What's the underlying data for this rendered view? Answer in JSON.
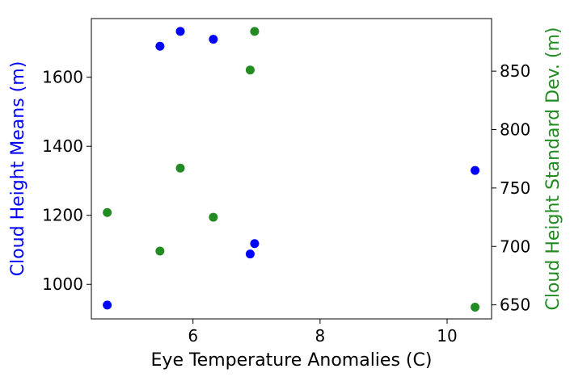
{
  "chart_data": {
    "type": "scatter",
    "xlabel": "Eye Temperature Anomalies (C)",
    "ylabel_left": "Cloud Height Means (m)",
    "ylabel_right": "Cloud Height Standard Dev. (m)",
    "xlim": [
      4.4,
      10.7
    ],
    "ylim_left": [
      900,
      1770
    ],
    "ylim_right": [
      638,
      895
    ],
    "x_ticks": [
      6,
      8,
      10
    ],
    "y_left_ticks": [
      1000,
      1200,
      1400,
      1600
    ],
    "y_right_ticks": [
      650,
      700,
      750,
      800,
      850
    ],
    "grid": false,
    "series": [
      {
        "axis": "left",
        "color": "#0000ff",
        "x": [
          4.65,
          5.48,
          5.8,
          6.32,
          6.9,
          6.97,
          10.44
        ],
        "y": [
          940,
          1690,
          1733,
          1710,
          1088,
          1118,
          1330
        ]
      },
      {
        "axis": "right",
        "color": "#228b22",
        "x": [
          4.65,
          5.48,
          5.8,
          6.32,
          6.9,
          6.97,
          10.44
        ],
        "y": [
          729,
          696,
          767,
          725,
          851,
          884,
          648
        ]
      }
    ],
    "label_colors": {
      "left": "#0000ff",
      "right": "#228b22"
    }
  }
}
